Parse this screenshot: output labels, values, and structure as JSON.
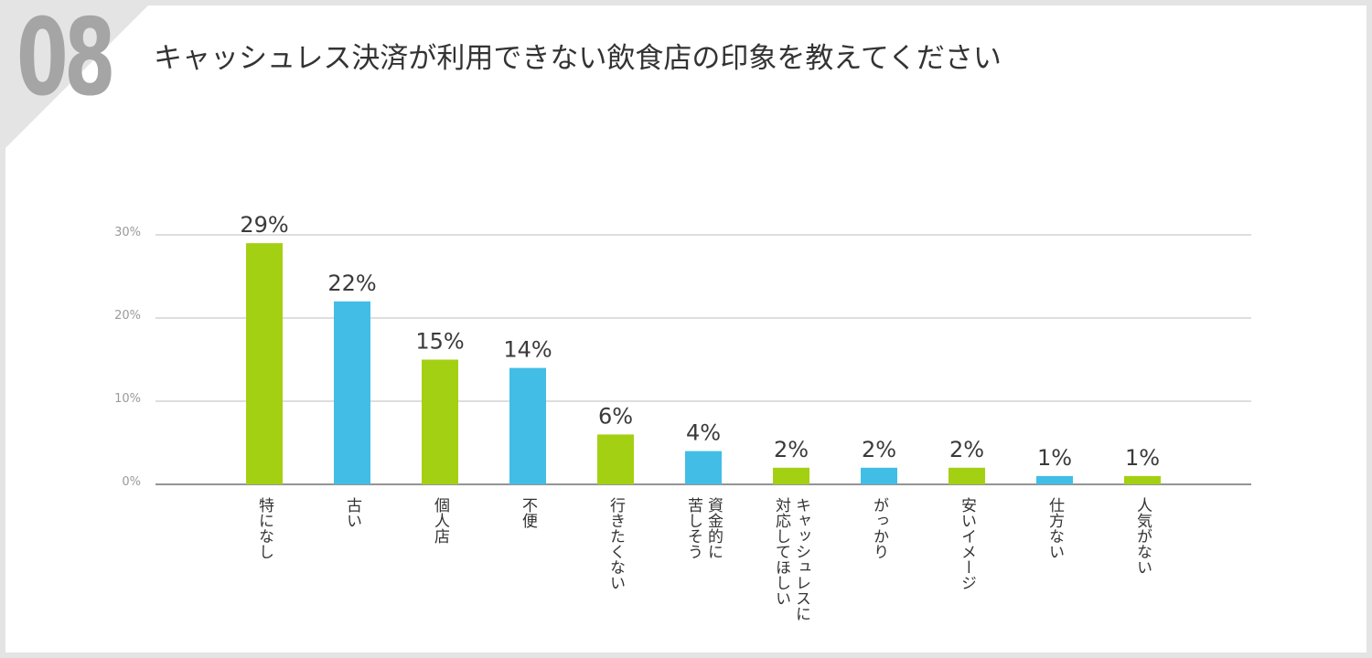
{
  "header": {
    "number": "08",
    "title": "キャッシュレス決済が利用できない飲食店の印象を教えてください"
  },
  "colors": {
    "green": "#a4d014",
    "blue": "#42bde6",
    "grid": "#bdbdbd",
    "axis": "#555555"
  },
  "chart_data": {
    "type": "bar",
    "title": "キャッシュレス決済が利用できない飲食店の印象を教えてください",
    "xlabel": "",
    "ylabel": "",
    "ylim": [
      0,
      30
    ],
    "yticks": [
      "0%",
      "10%",
      "20%",
      "30%"
    ],
    "grid": true,
    "categories": [
      "特になし",
      "古い",
      "個人店",
      "不便",
      "行きたくない",
      "資金的に\n苦しそう",
      "キャッシュレスに\n対応してほしい",
      "がっかり",
      "安いイメージ",
      "仕方ない",
      "人気がない"
    ],
    "values": [
      29,
      22,
      15,
      14,
      6,
      4,
      2,
      2,
      2,
      1,
      1
    ],
    "labels": [
      "29%",
      "22%",
      "15%",
      "14%",
      "6%",
      "4%",
      "2%",
      "2%",
      "2%",
      "1%",
      "1%"
    ],
    "bar_colors": [
      "green",
      "blue",
      "green",
      "blue",
      "green",
      "blue",
      "green",
      "blue",
      "green",
      "blue",
      "green"
    ]
  }
}
